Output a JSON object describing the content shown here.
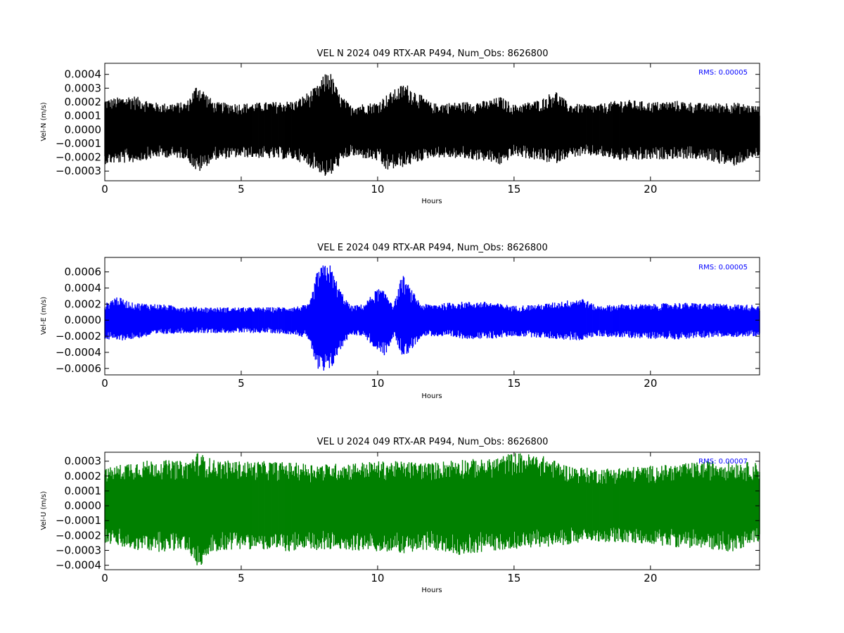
{
  "chart_data": [
    {
      "type": "scatter",
      "title": "VEL N 2024 049 RTX-AR  P494, Num_Obs: 8626800",
      "xlabel": "Hours",
      "ylabel": "Vel-N (m/s)",
      "xlim": [
        0,
        24
      ],
      "ylim": [
        -0.00037,
        0.00048
      ],
      "xticks": [
        "0",
        "5",
        "10",
        "15",
        "20"
      ],
      "yticks": [
        "0.0004",
        "0.0003",
        "0.0002",
        "0.0001",
        "0.0000",
        "−0.0001",
        "−0.0002",
        "−0.0003"
      ],
      "rms_label": "RMS:  0.00005",
      "color": "#000000",
      "grid": false,
      "series": [
        {
          "x": [
            0,
            1,
            2,
            3,
            3.4,
            4,
            5,
            6,
            7,
            7.8,
            8.2,
            8.6,
            9,
            10,
            10.3,
            11,
            12,
            13,
            14,
            14.5,
            15,
            16,
            16.5,
            17,
            18,
            19,
            20,
            21,
            22,
            23,
            24
          ],
          "max": [
            0.00022,
            0.00025,
            0.00019,
            0.0002,
            0.00034,
            0.0002,
            0.00019,
            0.0002,
            0.00021,
            0.00032,
            0.00045,
            0.00026,
            0.00018,
            0.0002,
            0.00025,
            0.00034,
            0.00019,
            0.0002,
            0.00021,
            0.00024,
            0.00018,
            0.00022,
            0.00029,
            0.00019,
            0.00018,
            0.00022,
            0.0002,
            0.00021,
            0.00019,
            0.0002,
            0.00017
          ],
          "min": [
            -0.00025,
            -0.00024,
            -0.0002,
            -0.00021,
            -0.00032,
            -0.00022,
            -0.0002,
            -0.00021,
            -0.00022,
            -0.0003,
            -0.00036,
            -0.00026,
            -0.00019,
            -0.00023,
            -0.0003,
            -0.00027,
            -0.0002,
            -0.00021,
            -0.00023,
            -0.00026,
            -0.00019,
            -0.00023,
            -0.00025,
            -0.0002,
            -0.00019,
            -0.00023,
            -0.00022,
            -0.00021,
            -0.00022,
            -0.00027,
            -0.00019
          ]
        }
      ]
    },
    {
      "type": "scatter",
      "title": "VEL E 2024 049 RTX-AR  P494, Num_Obs: 8626800",
      "xlabel": "Hours",
      "ylabel": "Vel-E (m/s)",
      "xlim": [
        0,
        24
      ],
      "ylim": [
        -0.00068,
        0.00078
      ],
      "xticks": [
        "0",
        "5",
        "10",
        "15",
        "20"
      ],
      "yticks": [
        "0.0006",
        "0.0004",
        "0.0002",
        "0.0000",
        "−0.0002",
        "−0.0004",
        "−0.0006"
      ],
      "rms_label": "RMS:  0.00005",
      "color": "#0000ff",
      "grid": false,
      "series": [
        {
          "x": [
            0,
            0.4,
            1,
            2,
            3,
            4,
            5,
            6,
            7,
            7.5,
            7.8,
            8.2,
            8.6,
            9,
            9.5,
            10,
            10.3,
            10.6,
            10.9,
            11.2,
            11.6,
            12,
            13,
            14,
            15,
            16,
            17,
            17.5,
            18,
            19,
            20,
            21,
            22,
            23,
            24
          ],
          "max": [
            0.0002,
            0.0003,
            0.00022,
            0.0002,
            0.00017,
            0.00016,
            0.00016,
            0.00016,
            0.00017,
            0.0002,
            0.00063,
            0.00074,
            0.0004,
            0.00018,
            0.0002,
            0.0004,
            0.00035,
            0.0002,
            0.00058,
            0.0004,
            0.0002,
            0.0002,
            0.00023,
            0.00023,
            0.00018,
            0.0002,
            0.00025,
            0.00028,
            0.00018,
            0.0002,
            0.0002,
            0.00022,
            0.00021,
            0.0002,
            0.00019
          ],
          "min": [
            -0.00024,
            -0.00026,
            -0.00024,
            -0.00018,
            -0.00016,
            -0.00016,
            -0.00016,
            -0.00016,
            -0.00018,
            -0.00025,
            -0.00065,
            -0.00068,
            -0.0004,
            -0.00018,
            -0.0002,
            -0.0004,
            -0.00045,
            -0.0002,
            -0.00045,
            -0.0004,
            -0.0002,
            -0.0002,
            -0.00023,
            -0.00024,
            -0.0002,
            -0.00022,
            -0.00025,
            -0.00025,
            -0.0002,
            -0.00022,
            -0.00023,
            -0.00024,
            -0.00022,
            -0.00021,
            -0.0002
          ]
        }
      ]
    },
    {
      "type": "scatter",
      "title": "VEL U 2024 049 RTX-AR  P494, Num_Obs: 8626800",
      "xlabel": "Hours",
      "ylabel": "Vel-U (m/s)",
      "xlim": [
        0,
        24
      ],
      "ylim": [
        -0.00043,
        0.00036
      ],
      "xticks": [
        "0",
        "5",
        "10",
        "15",
        "20"
      ],
      "yticks": [
        "0.0003",
        "0.0002",
        "0.0001",
        "0.0000",
        "−0.0001",
        "−0.0002",
        "−0.0003",
        "−0.0004"
      ],
      "rms_label": "RMS:  0.00007",
      "color": "#008000",
      "grid": false,
      "series": [
        {
          "x": [
            0,
            1,
            2,
            3,
            3.4,
            4,
            5,
            6,
            7,
            8,
            9,
            10,
            11,
            12,
            13,
            14,
            15,
            16,
            17,
            18,
            19,
            20,
            21,
            22,
            23,
            24
          ],
          "max": [
            0.00025,
            0.0003,
            0.00031,
            0.0003,
            0.00036,
            0.00031,
            0.0003,
            0.0003,
            0.00029,
            0.00028,
            0.00029,
            0.0003,
            0.0003,
            0.00029,
            0.00032,
            0.00031,
            0.00036,
            0.00034,
            0.00027,
            0.00025,
            0.00026,
            0.00027,
            0.00028,
            0.0003,
            0.0003,
            0.00029
          ],
          "min": [
            -0.00025,
            -0.0003,
            -0.00031,
            -0.0003,
            -0.00043,
            -0.00031,
            -0.00029,
            -0.0003,
            -0.00031,
            -0.0003,
            -0.0003,
            -0.00031,
            -0.00032,
            -0.0003,
            -0.00033,
            -0.00031,
            -0.00029,
            -0.00028,
            -0.00026,
            -0.00024,
            -0.00025,
            -0.00026,
            -0.00028,
            -0.00029,
            -0.00031,
            -0.00024
          ]
        }
      ]
    }
  ]
}
